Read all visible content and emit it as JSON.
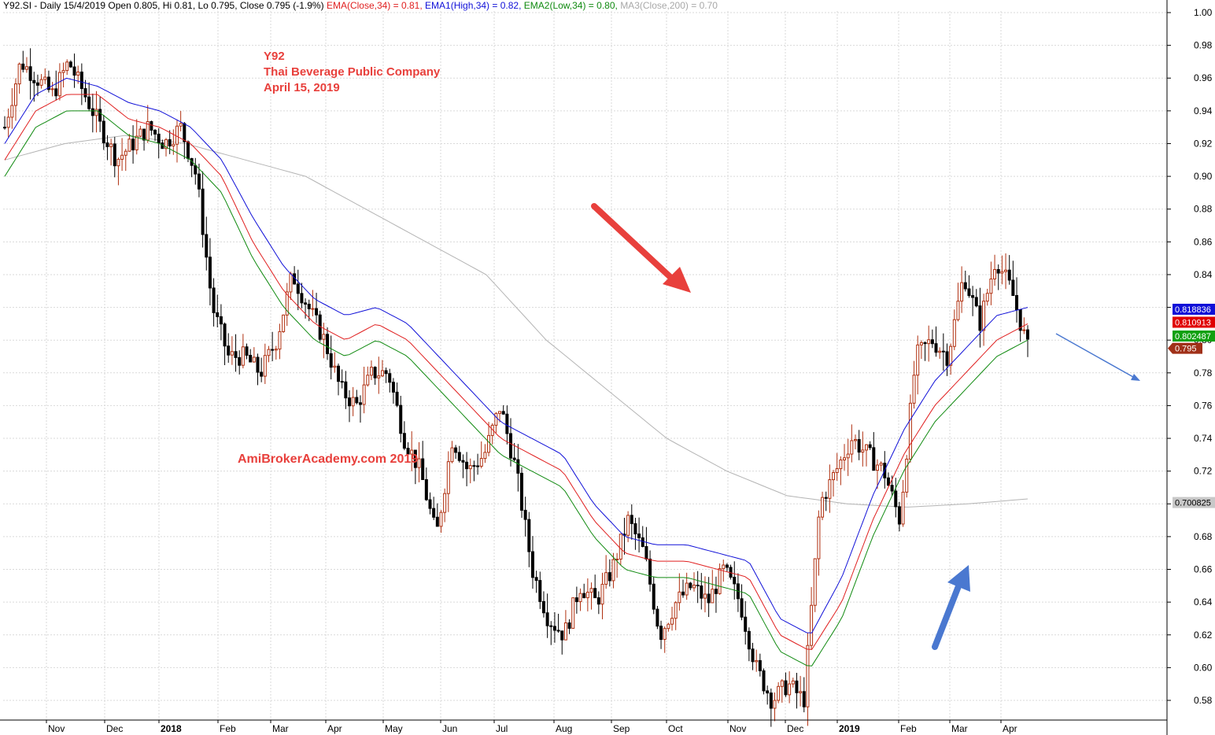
{
  "header": {
    "info": "Y92.SI - Daily 15/4/2019 Open 0.805, Hi 0.81, Lo 0.795, Close 0.795 (-1.9%)",
    "ema": "EMA(Close,34) = 0.81,",
    "ema1": "EMA1(High,34) = 0.82,",
    "ema2": "EMA2(Low,34) = 0.80,",
    "ma3": "MA3(Close,200) = 0.70"
  },
  "annotations": {
    "ticker": "Y92",
    "company": "Thai Beverage Public Company",
    "date": "April 15, 2019",
    "watermark": "AmiBrokerAcademy.com  2019"
  },
  "colors": {
    "ema_close": "#e02020",
    "ema_high": "#1010d8",
    "ema_low": "#108a10",
    "ma200": "#b4b4b4",
    "up_candle": "#b03010",
    "down_candle": "#000000",
    "red_arrow": "#e8403c",
    "blue_arrow": "#4a78d0"
  },
  "chart_data": {
    "type": "candlestick",
    "ylim": [
      0.57,
      1.0
    ],
    "yticks": [
      "1.00",
      "0.98",
      "0.96",
      "0.94",
      "0.92",
      "0.90",
      "0.88",
      "0.86",
      "0.84",
      "0.82",
      "0.80",
      "0.78",
      "0.76",
      "0.74",
      "0.72",
      "0.70",
      "0.68",
      "0.66",
      "0.64",
      "0.62",
      "0.60",
      "0.58"
    ],
    "xticks": [
      "Nov",
      "Dec",
      "2018",
      "Feb",
      "Mar",
      "Apr",
      "May",
      "Jun",
      "Jul",
      "Aug",
      "Sep",
      "Oct",
      "Nov",
      "Dec",
      "2019",
      "Feb",
      "Mar",
      "Apr"
    ],
    "bold_xticks": [
      "2018",
      "2019"
    ],
    "close_path": [
      0.93,
      0.97,
      0.96,
      0.95,
      0.97,
      0.95,
      0.93,
      0.91,
      0.92,
      0.93,
      0.92,
      0.93,
      0.9,
      0.82,
      0.79,
      0.79,
      0.78,
      0.8,
      0.84,
      0.82,
      0.8,
      0.77,
      0.76,
      0.78,
      0.78,
      0.74,
      0.72,
      0.68,
      0.74,
      0.72,
      0.73,
      0.76,
      0.72,
      0.66,
      0.63,
      0.62,
      0.65,
      0.64,
      0.66,
      0.69,
      0.67,
      0.62,
      0.64,
      0.65,
      0.64,
      0.66,
      0.64,
      0.6,
      0.58,
      0.59,
      0.58,
      0.7,
      0.72,
      0.74,
      0.73,
      0.72,
      0.69,
      0.79,
      0.8,
      0.79,
      0.84,
      0.81,
      0.85,
      0.83,
      0.795
    ],
    "ema_close_path": [
      0.91,
      0.94,
      0.95,
      0.95,
      0.935,
      0.93,
      0.92,
      0.9,
      0.86,
      0.83,
      0.81,
      0.8,
      0.81,
      0.8,
      0.78,
      0.76,
      0.74,
      0.73,
      0.72,
      0.69,
      0.67,
      0.665,
      0.665,
      0.66,
      0.655,
      0.62,
      0.61,
      0.64,
      0.69,
      0.73,
      0.76,
      0.78,
      0.8,
      0.81
    ],
    "ema_high_path": [
      0.92,
      0.95,
      0.96,
      0.955,
      0.945,
      0.94,
      0.93,
      0.91,
      0.875,
      0.845,
      0.825,
      0.815,
      0.82,
      0.81,
      0.79,
      0.77,
      0.75,
      0.74,
      0.73,
      0.7,
      0.68,
      0.675,
      0.675,
      0.67,
      0.665,
      0.63,
      0.62,
      0.655,
      0.705,
      0.745,
      0.775,
      0.795,
      0.815,
      0.82
    ],
    "ema_low_path": [
      0.9,
      0.93,
      0.94,
      0.94,
      0.925,
      0.92,
      0.91,
      0.89,
      0.85,
      0.82,
      0.8,
      0.79,
      0.8,
      0.79,
      0.77,
      0.75,
      0.73,
      0.72,
      0.71,
      0.68,
      0.66,
      0.655,
      0.655,
      0.65,
      0.645,
      0.61,
      0.6,
      0.63,
      0.68,
      0.72,
      0.75,
      0.77,
      0.79,
      0.8
    ],
    "ma200_path": [
      0.91,
      0.92,
      0.925,
      0.92,
      0.91,
      0.9,
      0.88,
      0.86,
      0.84,
      0.8,
      0.77,
      0.74,
      0.72,
      0.705,
      0.7,
      0.698,
      0.7,
      0.703
    ],
    "last_values": {
      "ema_high": "0.818836",
      "ema_close": "0.810913",
      "ema_low": "0.802487",
      "close": "0.795",
      "ma200": "0.700825"
    }
  }
}
